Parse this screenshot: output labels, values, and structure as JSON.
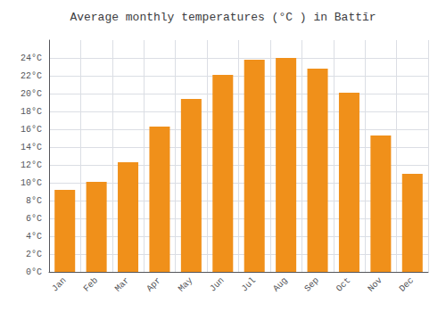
{
  "chart_data": {
    "type": "bar",
    "title": "Average monthly temperatures (°C ) in Battīr",
    "categories": [
      "Jan",
      "Feb",
      "Mar",
      "Apr",
      "May",
      "Jun",
      "Jul",
      "Aug",
      "Sep",
      "Oct",
      "Nov",
      "Dec"
    ],
    "values": [
      9.2,
      10.1,
      12.3,
      16.3,
      19.4,
      22.1,
      23.8,
      24.0,
      22.8,
      20.1,
      15.3,
      11.0
    ],
    "color": "#F0901A",
    "ylim": [
      0,
      26
    ],
    "yticks": [
      {
        "value": 0,
        "label": "0°C"
      },
      {
        "value": 2,
        "label": "2°C"
      },
      {
        "value": 4,
        "label": "4°C"
      },
      {
        "value": 6,
        "label": "6°C"
      },
      {
        "value": 8,
        "label": "8°C"
      },
      {
        "value": 10,
        "label": "10°C"
      },
      {
        "value": 12,
        "label": "12°C"
      },
      {
        "value": 14,
        "label": "14°C"
      },
      {
        "value": 16,
        "label": "16°C"
      },
      {
        "value": 18,
        "label": "18°C"
      },
      {
        "value": 20,
        "label": "20°C"
      },
      {
        "value": 22,
        "label": "22°C"
      },
      {
        "value": 24,
        "label": "24°C"
      }
    ],
    "grid": true
  }
}
